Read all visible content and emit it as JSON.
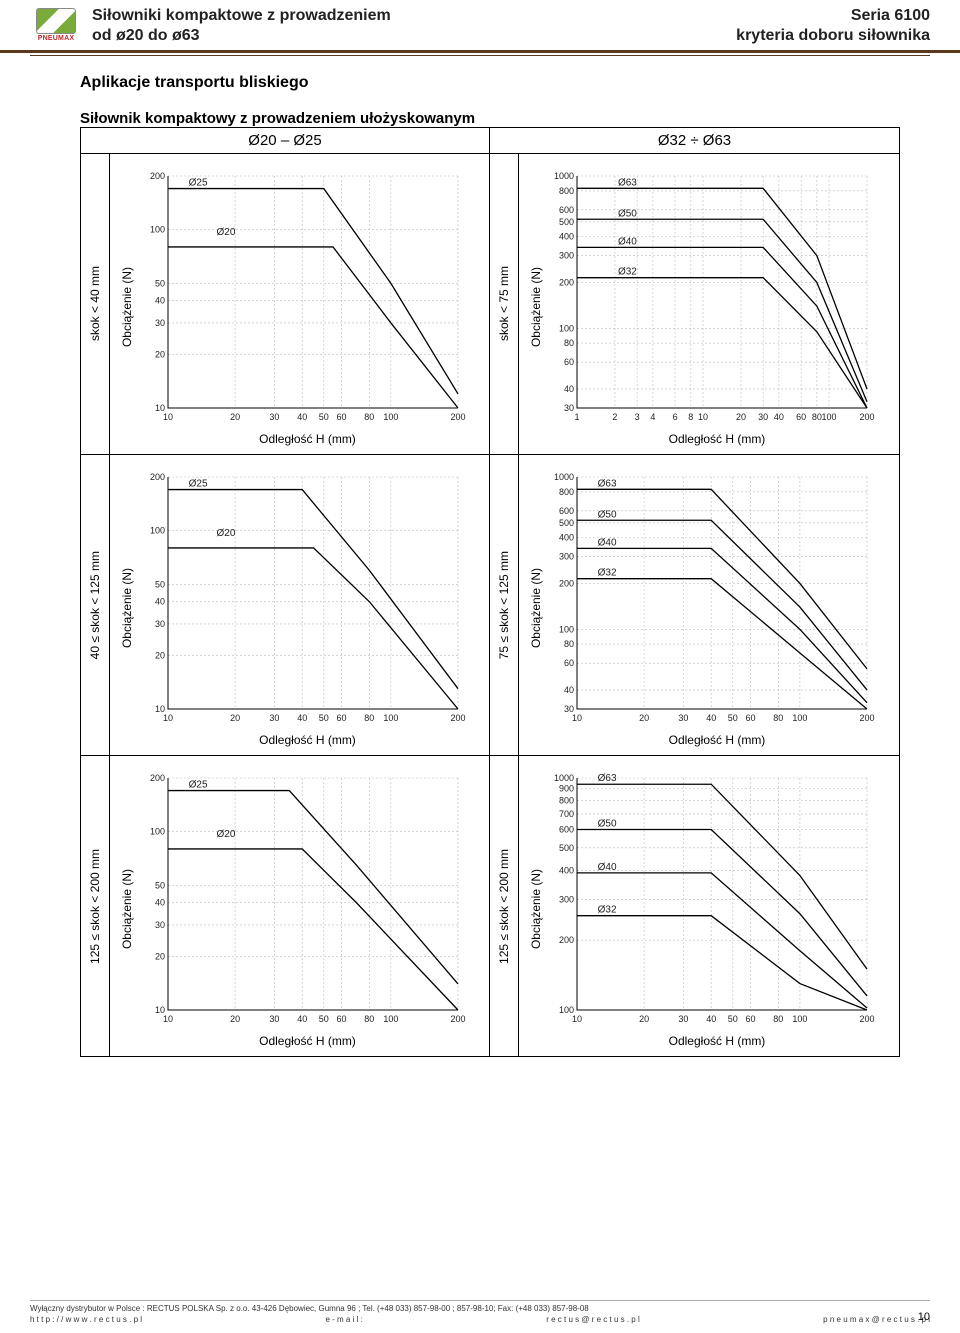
{
  "header": {
    "logo_brand": "PNEUMAX",
    "title_left_line1": "Siłowniki kompaktowe z prowadzeniem",
    "title_left_line2": "od ø20 do ø63",
    "title_right_line1": "Seria 6100",
    "title_right_line2": "kryteria doboru siłownika"
  },
  "section_title": "Aplikacje transportu bliskiego",
  "sub_title": "Siłownik kompaktowy z prowadzeniem ułożyskowanym",
  "col_left_header": "Ø20 – Ø25",
  "col_right_header": "Ø32 ÷ Ø63",
  "labels": {
    "yaxis": "Obciążenie (N)",
    "xaxis": "Odległość H (mm)",
    "row1": "skok < 40 mm",
    "row1r": "skok < 75 mm",
    "row2": "40 ≤ skok < 125 mm",
    "row2r": "75 ≤ skok < 125 mm",
    "row3": "125 ≤ skok < 200 mm",
    "row3r": "125 ≤ skok < 200 mm"
  },
  "chartA": {
    "type": "line-loglog",
    "x_ticks": [
      10,
      20,
      30,
      40,
      50,
      60,
      80,
      100,
      200
    ],
    "y_ticks": [
      10,
      20,
      30,
      40,
      50,
      100,
      200
    ],
    "xlim": [
      10,
      200
    ],
    "ylim": [
      10,
      200
    ],
    "grid_color": "#bbbbbb",
    "line_color": "#000000",
    "background_color": "#ffffff",
    "series": [
      {
        "name": "Ø25",
        "label_pos": [
          12,
          170
        ],
        "points": [
          [
            10,
            170
          ],
          [
            50,
            170
          ],
          [
            100,
            50
          ],
          [
            200,
            12
          ]
        ]
      },
      {
        "name": "Ø20",
        "label_pos": [
          16,
          90
        ],
        "points": [
          [
            10,
            80
          ],
          [
            55,
            80
          ],
          [
            100,
            30
          ],
          [
            200,
            10
          ]
        ]
      }
    ]
  },
  "chartB": {
    "type": "line-loglog",
    "x_ticks": [
      1,
      2,
      3,
      4,
      6,
      8,
      10,
      20,
      30,
      40,
      60,
      80,
      100,
      200
    ],
    "y_ticks": [
      30,
      40,
      60,
      80,
      100,
      200,
      300,
      400,
      500,
      600,
      800,
      1000
    ],
    "xlim": [
      1,
      200
    ],
    "ylim": [
      30,
      1000
    ],
    "grid_color": "#bbbbbb",
    "line_color": "#000000",
    "background_color": "#ffffff",
    "series": [
      {
        "name": "Ø63",
        "label_pos": [
          2,
          830
        ],
        "points": [
          [
            1,
            830
          ],
          [
            30,
            830
          ],
          [
            80,
            300
          ],
          [
            200,
            40
          ]
        ]
      },
      {
        "name": "Ø50",
        "label_pos": [
          2,
          520
        ],
        "points": [
          [
            1,
            520
          ],
          [
            30,
            520
          ],
          [
            80,
            200
          ],
          [
            200,
            33
          ]
        ]
      },
      {
        "name": "Ø40",
        "label_pos": [
          2,
          340
        ],
        "points": [
          [
            1,
            340
          ],
          [
            30,
            340
          ],
          [
            80,
            140
          ],
          [
            200,
            30
          ]
        ]
      },
      {
        "name": "Ø32",
        "label_pos": [
          2,
          215
        ],
        "points": [
          [
            1,
            215
          ],
          [
            30,
            215
          ],
          [
            80,
            95
          ],
          [
            200,
            30
          ]
        ]
      }
    ]
  },
  "chartC": {
    "type": "line-loglog",
    "x_ticks": [
      10,
      20,
      30,
      40,
      50,
      60,
      80,
      100,
      200
    ],
    "y_ticks": [
      10,
      20,
      30,
      40,
      50,
      100,
      200
    ],
    "xlim": [
      10,
      200
    ],
    "ylim": [
      10,
      200
    ],
    "grid_color": "#bbbbbb",
    "line_color": "#000000",
    "background_color": "#ffffff",
    "series": [
      {
        "name": "Ø25",
        "label_pos": [
          12,
          170
        ],
        "points": [
          [
            10,
            170
          ],
          [
            40,
            170
          ],
          [
            80,
            60
          ],
          [
            200,
            13
          ]
        ]
      },
      {
        "name": "Ø20",
        "label_pos": [
          16,
          90
        ],
        "points": [
          [
            10,
            80
          ],
          [
            45,
            80
          ],
          [
            80,
            40
          ],
          [
            200,
            10
          ]
        ]
      }
    ]
  },
  "chartD": {
    "type": "line-loglog",
    "x_ticks": [
      10,
      20,
      30,
      40,
      50,
      60,
      80,
      100,
      200
    ],
    "y_ticks": [
      30,
      40,
      60,
      80,
      100,
      200,
      300,
      400,
      500,
      600,
      800,
      1000
    ],
    "xlim": [
      10,
      200
    ],
    "ylim": [
      30,
      1000
    ],
    "grid_color": "#bbbbbb",
    "line_color": "#000000",
    "background_color": "#ffffff",
    "series": [
      {
        "name": "Ø63",
        "label_pos": [
          12,
          830
        ],
        "points": [
          [
            10,
            830
          ],
          [
            40,
            830
          ],
          [
            100,
            200
          ],
          [
            200,
            55
          ]
        ]
      },
      {
        "name": "Ø50",
        "label_pos": [
          12,
          520
        ],
        "points": [
          [
            10,
            520
          ],
          [
            40,
            520
          ],
          [
            100,
            140
          ],
          [
            200,
            40
          ]
        ]
      },
      {
        "name": "Ø40",
        "label_pos": [
          12,
          340
        ],
        "points": [
          [
            10,
            340
          ],
          [
            40,
            340
          ],
          [
            100,
            100
          ],
          [
            200,
            33
          ]
        ]
      },
      {
        "name": "Ø32",
        "label_pos": [
          12,
          215
        ],
        "points": [
          [
            10,
            215
          ],
          [
            40,
            215
          ],
          [
            100,
            70
          ],
          [
            200,
            30
          ]
        ]
      }
    ]
  },
  "chartE": {
    "type": "line-loglog",
    "x_ticks": [
      10,
      20,
      30,
      40,
      50,
      60,
      80,
      100,
      200
    ],
    "y_ticks": [
      10,
      20,
      30,
      40,
      50,
      100,
      200
    ],
    "xlim": [
      10,
      200
    ],
    "ylim": [
      10,
      200
    ],
    "grid_color": "#bbbbbb",
    "line_color": "#000000",
    "background_color": "#ffffff",
    "series": [
      {
        "name": "Ø25",
        "label_pos": [
          12,
          170
        ],
        "points": [
          [
            10,
            170
          ],
          [
            35,
            170
          ],
          [
            70,
            65
          ],
          [
            200,
            14
          ]
        ]
      },
      {
        "name": "Ø20",
        "label_pos": [
          16,
          90
        ],
        "points": [
          [
            10,
            80
          ],
          [
            40,
            80
          ],
          [
            70,
            40
          ],
          [
            200,
            10
          ]
        ]
      }
    ]
  },
  "chartF": {
    "type": "line-loglog",
    "x_ticks": [
      10,
      20,
      30,
      40,
      50,
      60,
      80,
      100,
      200
    ],
    "y_ticks": [
      100,
      200,
      300,
      400,
      500,
      600,
      700,
      800,
      900,
      1000
    ],
    "xlim": [
      10,
      200
    ],
    "ylim": [
      100,
      1000
    ],
    "grid_color": "#bbbbbb",
    "line_color": "#000000",
    "background_color": "#ffffff",
    "series": [
      {
        "name": "Ø63",
        "label_pos": [
          12,
          940
        ],
        "points": [
          [
            10,
            940
          ],
          [
            40,
            940
          ],
          [
            100,
            380
          ],
          [
            200,
            150
          ]
        ]
      },
      {
        "name": "Ø50",
        "label_pos": [
          12,
          600
        ],
        "points": [
          [
            10,
            600
          ],
          [
            40,
            600
          ],
          [
            100,
            260
          ],
          [
            200,
            115
          ]
        ]
      },
      {
        "name": "Ø40",
        "label_pos": [
          12,
          390
        ],
        "points": [
          [
            10,
            390
          ],
          [
            40,
            390
          ],
          [
            100,
            180
          ],
          [
            200,
            102
          ]
        ]
      },
      {
        "name": "Ø32",
        "label_pos": [
          12,
          255
        ],
        "points": [
          [
            10,
            255
          ],
          [
            40,
            255
          ],
          [
            100,
            130
          ],
          [
            200,
            100
          ]
        ]
      }
    ]
  },
  "footer": {
    "line1": "Wyłączny dystrybutor w Polsce : RECTUS POLSKA Sp. z o.o.   43-426  Dębowiec, Gumna 96 ; Tel. (+48 033) 857-98-00 ; 857-98-10; Fax: (+48 033) 857-98-08",
    "line2_left": "h t t p : / / w w w . r e c t u s . p l",
    "line2_mid": "e - m a i l :",
    "line2_right": "r e c t u s @ r e c t u s . p l",
    "line2_far_right": "p n e u m a x @ r e c t u s . p l",
    "page_no": "10"
  }
}
